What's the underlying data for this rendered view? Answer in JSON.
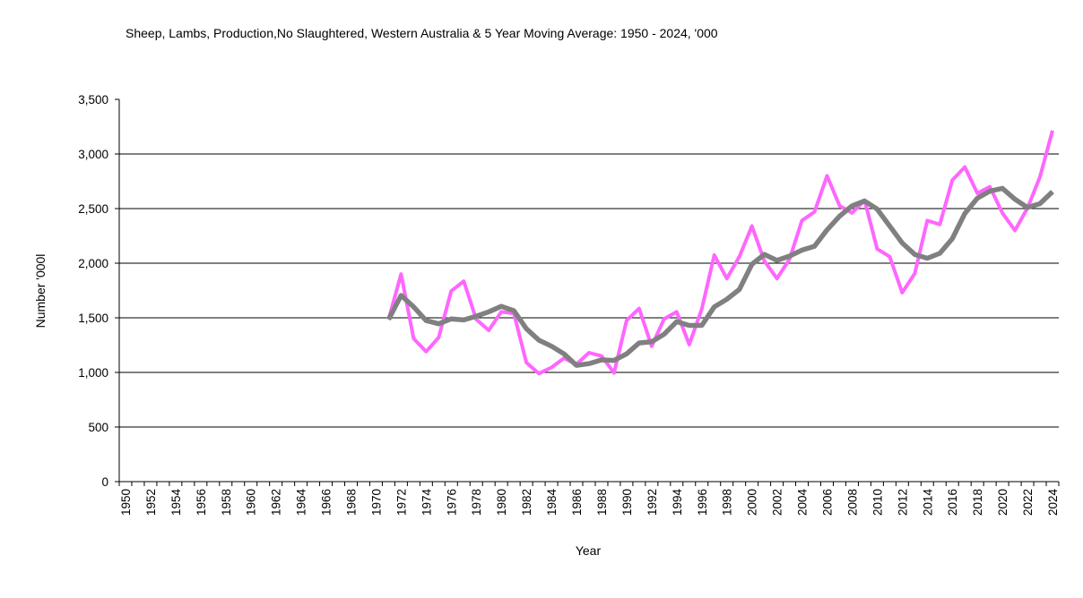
{
  "chart_data": {
    "type": "line",
    "title": "Sheep, Lambs, Production,No Slaughtered, Western Australia & 5 Year Moving Average: 1950 - 2024, '000",
    "xlabel": "Year",
    "ylabel": "Number '000l",
    "ylim": [
      0,
      3500
    ],
    "yticks": [
      0,
      500,
      1000,
      1500,
      2000,
      2500,
      3000,
      3500
    ],
    "ytick_labels": [
      "0",
      "500",
      "1,000",
      "1,500",
      "2,000",
      "2,500",
      "3,000",
      "3,500"
    ],
    "grid": "horizontal",
    "legend": "none",
    "categories_start": 1950,
    "categories_end": 2024,
    "xtick_labels": [
      "1950",
      "1952",
      "1954",
      "1956",
      "1958",
      "1960",
      "1962",
      "1964",
      "1966",
      "1968",
      "1970",
      "1972",
      "1974",
      "1976",
      "1978",
      "1980",
      "1982",
      "1984",
      "1986",
      "1988",
      "1990",
      "1992",
      "1994",
      "1996",
      "1998",
      "2000",
      "2002",
      "2004",
      "2006",
      "2008",
      "2010",
      "2012",
      "2014",
      "2016",
      "2018",
      "2020",
      "2022",
      "2024"
    ],
    "series": [
      {
        "name": "Sheep, Lambs, Production, No Slaughtered, Western Australia",
        "color": "#FF66FF",
        "start_year": 1971,
        "values": [
          1485,
          1900,
          1310,
          1190,
          1320,
          1745,
          1835,
          1485,
          1385,
          1555,
          1540,
          1090,
          990,
          1045,
          1130,
          1075,
          1180,
          1150,
          995,
          1475,
          1585,
          1240,
          1490,
          1555,
          1255,
          1580,
          2075,
          1860,
          2060,
          2340,
          2020,
          1860,
          2035,
          2390,
          2470,
          2800,
          2525,
          2460,
          2575,
          2130,
          2060,
          1730,
          1905,
          2390,
          2355,
          2760,
          2880,
          2640,
          2700,
          2460,
          2300,
          2505,
          2790,
          3215
        ]
      },
      {
        "name": "5 Year Moving Average",
        "color": "#808080",
        "start_year": 1971,
        "values": [
          1485,
          1705,
          1600,
          1475,
          1445,
          1490,
          1480,
          1515,
          1555,
          1605,
          1565,
          1400,
          1295,
          1240,
          1170,
          1065,
          1080,
          1115,
          1110,
          1170,
          1270,
          1280,
          1350,
          1465,
          1430,
          1430,
          1600,
          1670,
          1760,
          1990,
          2080,
          2025,
          2065,
          2120,
          2155,
          2305,
          2430,
          2525,
          2570,
          2495,
          2340,
          2185,
          2080,
          2045,
          2090,
          2225,
          2455,
          2595,
          2660,
          2685,
          2585,
          2510,
          2545,
          2655
        ]
      }
    ]
  }
}
